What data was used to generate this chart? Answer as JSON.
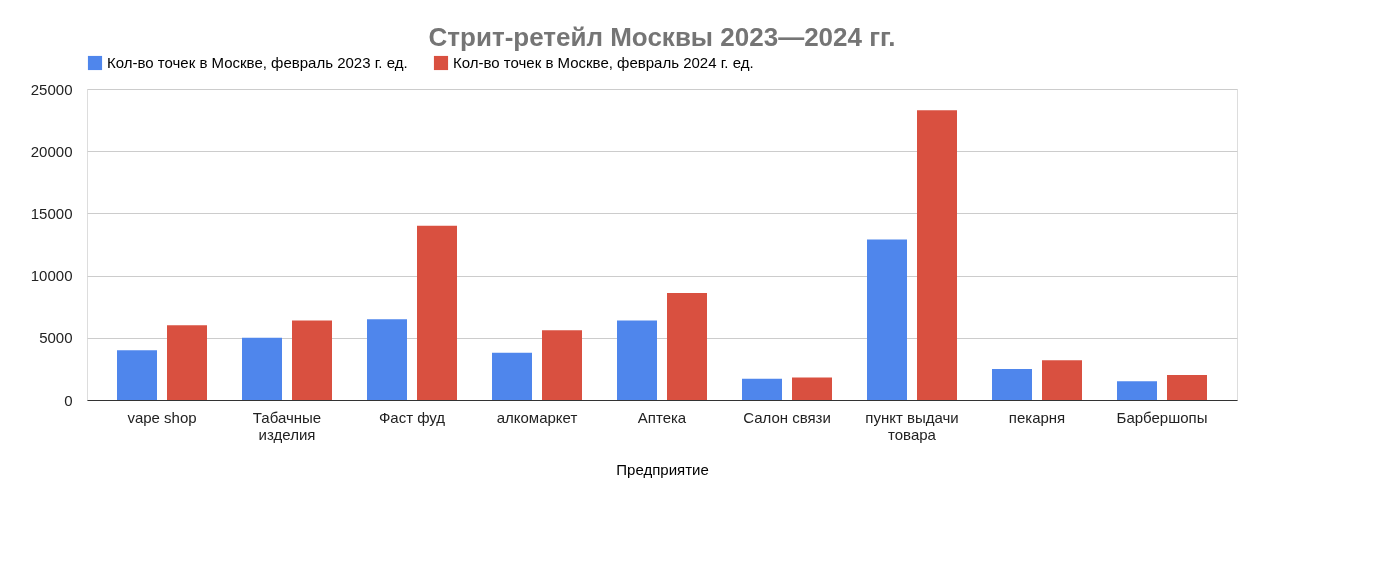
{
  "chart_data": {
    "type": "bar",
    "title": "Стрит-ретейл Москвы 2023—2024 гг.",
    "xlabel": "Предприятие",
    "categories": [
      "vape shop",
      "Табачные изделия",
      "Фаст фуд",
      "алкомаркет",
      "Аптека",
      "Салон связи",
      "пункт выдачи товара",
      "пекарня",
      "Барбершопы"
    ],
    "series": [
      {
        "name": "Кол-во точек в Москве, февраль 2023 г. ед.",
        "color": "#4f86ec",
        "values": [
          4000,
          5000,
          6500,
          3800,
          6400,
          1700,
          12900,
          2500,
          1500
        ]
      },
      {
        "name": "Кол-во точек в Москве, февраль 2024 г. ед.",
        "color": "#d95040",
        "values": [
          6000,
          6400,
          14000,
          5600,
          8600,
          1800,
          23300,
          3200,
          2000
        ]
      }
    ],
    "ylim": [
      0,
      25000
    ],
    "yticks": [
      0,
      5000,
      10000,
      15000,
      20000,
      25000
    ],
    "grid": "y",
    "legend": "top"
  }
}
